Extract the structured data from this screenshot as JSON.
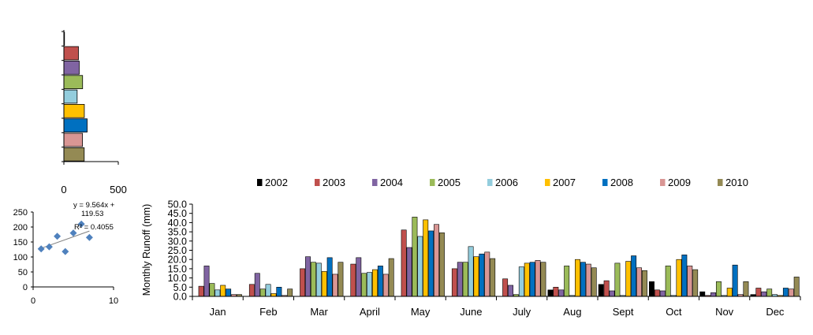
{
  "colors": {
    "2002": "#000000",
    "2003": "#C0504D",
    "2004": "#8064A2",
    "2005": "#9BBB59",
    "2006": "#93CDDD",
    "2007": "#FFC000",
    "2008": "#0070C0",
    "2009": "#D99694",
    "2010": "#948A54",
    "scatter_marker": "#4F81BD",
    "trendline": "#7f7f7f"
  },
  "chart_data": [
    {
      "type": "bar",
      "orientation": "horizontal",
      "categories": [
        "2002",
        "2003",
        "2004",
        "2005",
        "2006",
        "2007",
        "2008",
        "2009",
        "2010"
      ],
      "values": [
        3,
        134,
        141,
        172,
        122,
        188,
        214,
        171,
        187
      ],
      "xlim": [
        0,
        500
      ],
      "xticks": [
        "0",
        "500"
      ],
      "grid": false
    },
    {
      "type": "scatter",
      "points": [
        {
          "x": 1,
          "y": 127
        },
        {
          "x": 2,
          "y": 134
        },
        {
          "x": 3,
          "y": 169
        },
        {
          "x": 4,
          "y": 118
        },
        {
          "x": 5,
          "y": 180
        },
        {
          "x": 6,
          "y": 210
        },
        {
          "x": 7,
          "y": 165
        }
      ],
      "trendline": {
        "slope": 9.564,
        "intercept": 119.53,
        "x_range": [
          1,
          7
        ]
      },
      "equation_line1": "y = 9.564x +",
      "equation_line2": "119.53",
      "r2_label": "R² = 0.4055",
      "xlim": [
        0,
        10
      ],
      "ylim": [
        0,
        250
      ],
      "xticks": [
        "0",
        "10"
      ],
      "yticks": [
        "0",
        "50",
        "100",
        "150",
        "200",
        "250"
      ]
    },
    {
      "type": "bar",
      "ylabel": "Monthly  Runoff (mm)",
      "ylim": [
        0,
        50
      ],
      "yticks": [
        "0.0",
        "5.0",
        "10.0",
        "15.0",
        "20.0",
        "25.0",
        "30.0",
        "35.0",
        "40.0",
        "45.0",
        "50.0"
      ],
      "grid": false,
      "legend_position": "top",
      "categories": [
        "Jan",
        "Feb",
        "Mar",
        "April",
        "May",
        "June",
        "July",
        "Aug",
        "Sept",
        "Oct",
        "Nov",
        "Dec"
      ],
      "series": [
        {
          "name": "2002",
          "values": [
            0,
            0,
            0,
            0,
            0,
            0,
            0,
            3.5,
            6.5,
            8.0,
            2.5,
            1.0
          ]
        },
        {
          "name": "2003",
          "values": [
            5.5,
            6.5,
            15.0,
            17.5,
            36.0,
            15.0,
            9.5,
            5.0,
            8.5,
            3.5,
            0.5,
            4.5
          ]
        },
        {
          "name": "2004",
          "values": [
            16.5,
            12.5,
            21.5,
            21.0,
            26.5,
            18.5,
            6.0,
            3.5,
            3.0,
            3.0,
            2.0,
            2.5
          ]
        },
        {
          "name": "2005",
          "values": [
            7.0,
            4.0,
            18.5,
            12.5,
            43.0,
            18.5,
            1.0,
            16.5,
            18.0,
            16.5,
            8.0,
            4.0
          ]
        },
        {
          "name": "2006",
          "values": [
            3.5,
            6.5,
            18.0,
            13.0,
            32.5,
            27.0,
            16.0,
            0.5,
            0.5,
            0.5,
            0.5,
            1.0
          ]
        },
        {
          "name": "2007",
          "values": [
            6.0,
            1.5,
            13.5,
            14.5,
            41.5,
            21.5,
            18.0,
            20.0,
            19.0,
            20.0,
            4.5,
            0.5
          ]
        },
        {
          "name": "2008",
          "values": [
            4.0,
            5.0,
            21.0,
            16.5,
            35.5,
            23.0,
            18.5,
            18.5,
            22.0,
            22.5,
            17.0,
            4.5
          ]
        },
        {
          "name": "2009",
          "values": [
            1.0,
            0.5,
            12.0,
            12.0,
            39.0,
            24.0,
            19.5,
            17.5,
            15.5,
            16.5,
            1.0,
            4.0
          ]
        },
        {
          "name": "2010",
          "values": [
            1.0,
            4.0,
            18.5,
            20.5,
            34.5,
            20.5,
            18.5,
            15.5,
            14.0,
            14.5,
            8.0,
            10.5
          ]
        }
      ]
    }
  ]
}
